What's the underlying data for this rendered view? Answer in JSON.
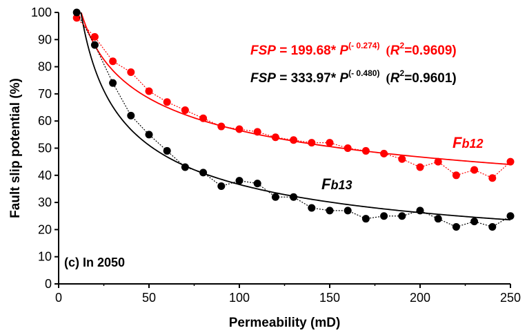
{
  "chart_data": {
    "type": "scatter",
    "xlabel": "Permeability (mD)",
    "ylabel": "Fault slip potential (%)",
    "xlim": [
      0,
      250
    ],
    "ylim": [
      0,
      100
    ],
    "xticks": [
      0,
      50,
      100,
      150,
      200,
      250
    ],
    "yticks": [
      0,
      10,
      20,
      30,
      40,
      50,
      60,
      70,
      80,
      90,
      100
    ],
    "xtick_labels": [
      "0",
      "50",
      "100",
      "150",
      "200",
      "250"
    ],
    "ytick_labels": [
      "0",
      "10",
      "20",
      "30",
      "40",
      "50",
      "60",
      "70",
      "80",
      "90",
      "100"
    ],
    "grid": false,
    "annotation": "(c) In 2050",
    "series": [
      {
        "name": "Fb12",
        "label_main": "F",
        "label_sub": "b12",
        "color": "#ff0000",
        "x": [
          10,
          20,
          30,
          40,
          50,
          60,
          70,
          80,
          90,
          100,
          110,
          120,
          130,
          140,
          150,
          160,
          170,
          180,
          190,
          200,
          210,
          220,
          230,
          240,
          250
        ],
        "y": [
          98,
          91,
          82,
          78,
          71,
          67,
          64,
          61,
          58,
          57,
          56,
          54,
          53,
          52,
          52,
          50,
          49,
          48,
          46,
          43,
          45,
          40,
          42,
          39,
          45
        ],
        "fit": {
          "a": 199.68,
          "b": -0.274,
          "r2": 0.9609
        },
        "equation": {
          "lhs": "FSP",
          "rhs": " = 199.68* ",
          "var": "P",
          "exp": "(- 0.274)",
          "r2_open": "(",
          "r2_var": "R",
          "r2_sup": "2",
          "r2_val": "=0.9609)"
        }
      },
      {
        "name": "Fb13",
        "label_main": "F",
        "label_sub": "b13",
        "color": "#000000",
        "x": [
          10,
          20,
          30,
          40,
          50,
          60,
          70,
          80,
          90,
          100,
          110,
          120,
          130,
          140,
          150,
          160,
          170,
          180,
          190,
          200,
          210,
          220,
          230,
          240,
          250
        ],
        "y": [
          100,
          88,
          74,
          62,
          55,
          49,
          43,
          41,
          36,
          38,
          37,
          32,
          32,
          28,
          27,
          27,
          24,
          25,
          25,
          27,
          24,
          21,
          23,
          21,
          25
        ],
        "fit": {
          "a": 333.97,
          "b": -0.48,
          "r2": 0.9601
        },
        "equation": {
          "lhs": "FSP",
          "rhs": " = 333.97* ",
          "var": "P",
          "exp": "(- 0.480)",
          "r2_open": "(",
          "r2_var": "R",
          "r2_sup": "2",
          "r2_val": "=0.9601)"
        }
      }
    ]
  }
}
